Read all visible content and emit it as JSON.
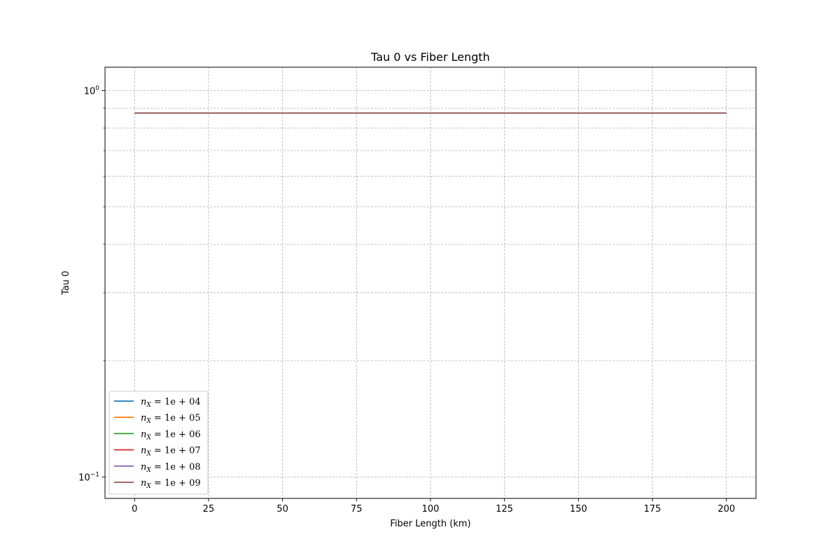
{
  "chart_data": {
    "type": "line",
    "title": "Tau 0 vs Fiber Length",
    "xlabel": "Fiber Length (km)",
    "ylabel": "Tau 0",
    "xlim": [
      -10,
      210
    ],
    "ylim": [
      0.088,
      1.15
    ],
    "yscale": "log",
    "grid": true,
    "legend_position": "lower-left",
    "x_ticks": [
      0,
      25,
      50,
      75,
      100,
      125,
      150,
      175,
      200
    ],
    "x_tick_labels": [
      "0",
      "25",
      "50",
      "75",
      "100",
      "125",
      "150",
      "175",
      "200"
    ],
    "y_major_ticks": [
      {
        "value": 1.0,
        "base": "10",
        "exp": "0"
      },
      {
        "value": 0.1,
        "base": "10",
        "exp": "−1"
      }
    ],
    "y_minor_ticks": [
      0.2,
      0.3,
      0.4,
      0.5,
      0.6,
      0.7,
      0.8,
      0.9
    ],
    "x": [
      0,
      200
    ],
    "series": [
      {
        "name": "n_X = 1e+04",
        "sym": "n",
        "sub": "X",
        "rest": " = 1e + 04",
        "color": "#1f77b4",
        "values": [
          0.875,
          0.875
        ]
      },
      {
        "name": "n_X = 1e+05",
        "sym": "n",
        "sub": "X",
        "rest": " = 1e + 05",
        "color": "#ff7f0e",
        "values": [
          0.875,
          0.875
        ]
      },
      {
        "name": "n_X = 1e+06",
        "sym": "n",
        "sub": "X",
        "rest": " = 1e + 06",
        "color": "#2ca02c",
        "values": [
          0.875,
          0.875
        ]
      },
      {
        "name": "n_X = 1e+07",
        "sym": "n",
        "sub": "X",
        "rest": " = 1e + 07",
        "color": "#d62728",
        "values": [
          0.875,
          0.875
        ]
      },
      {
        "name": "n_X = 1e+08",
        "sym": "n",
        "sub": "X",
        "rest": " = 1e + 08",
        "color": "#9467bd",
        "values": [
          0.875,
          0.875
        ]
      },
      {
        "name": "n_X = 1e+09",
        "sym": "n",
        "sub": "X",
        "rest": " = 1e + 09",
        "color": "#8c564b",
        "values": [
          0.875,
          0.875
        ]
      }
    ]
  }
}
